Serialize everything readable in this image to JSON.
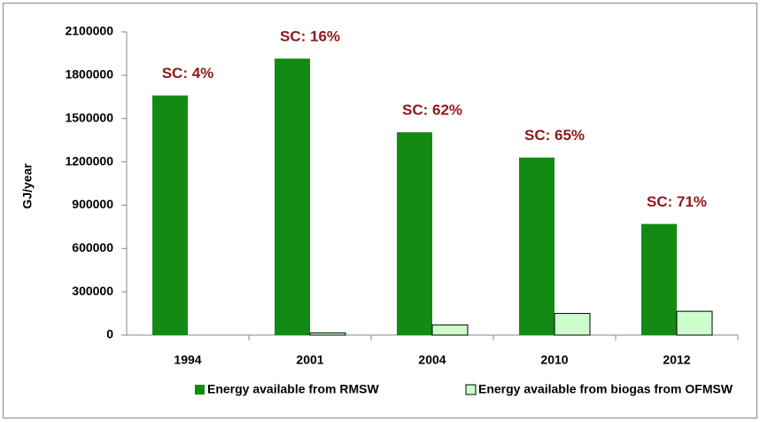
{
  "chart_data": {
    "type": "bar",
    "y_label": "GJ/year",
    "categories": [
      "1994",
      "2001",
      "2004",
      "2010",
      "2012"
    ],
    "series": [
      {
        "name": "Energy available from RMSW",
        "color": "#138a13",
        "values": [
          1660000,
          1915000,
          1405000,
          1230000,
          770000
        ]
      },
      {
        "name": "Energy available from biogas from OFMSW",
        "color": "#ccffcc",
        "values": [
          0,
          15000,
          70000,
          150000,
          165000
        ]
      }
    ],
    "annotations": [
      "SC: 4%",
      "SC: 16%",
      "SC: 62%",
      "SC: 65%",
      "SC: 71%"
    ],
    "annotation_color": "#8b1a1a",
    "ylim": [
      0,
      2100000
    ],
    "yticks": [
      0,
      300000,
      600000,
      900000,
      1200000,
      1500000,
      1800000,
      2100000
    ],
    "grid": false,
    "legend": "bottom"
  }
}
